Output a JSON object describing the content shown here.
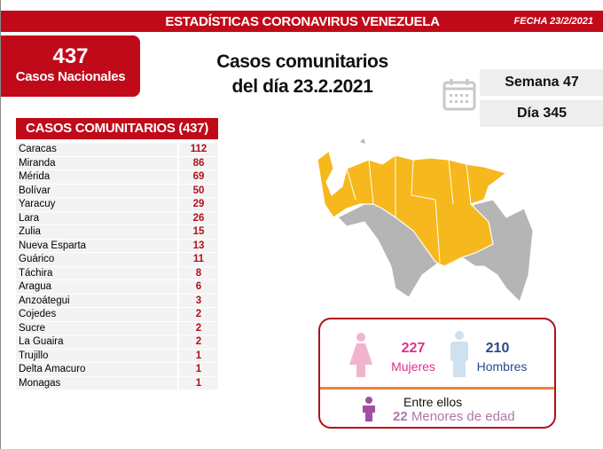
{
  "header": {
    "title": "ESTADÍSTICAS CORONAVIRUS VENEZUELA",
    "date": "FECHA 23/2/2021"
  },
  "national": {
    "count": "437",
    "label": "Casos Nacionales"
  },
  "main_title": {
    "line1": "Casos comunitarios",
    "line2": "del día 23.2.2021"
  },
  "week": "Semana 47",
  "day": "Día 345",
  "table": {
    "header": "CASOS COMUNITARIOS (437)",
    "rows": [
      {
        "state": "Caracas",
        "cases": "112"
      },
      {
        "state": "Miranda",
        "cases": "86"
      },
      {
        "state": "Mérida",
        "cases": "69"
      },
      {
        "state": "Bolívar",
        "cases": "50"
      },
      {
        "state": "Yaracuy",
        "cases": "29"
      },
      {
        "state": "Lara",
        "cases": "26"
      },
      {
        "state": "Zulia",
        "cases": "15"
      },
      {
        "state": "Nueva Esparta",
        "cases": "13"
      },
      {
        "state": "Guárico",
        "cases": "11"
      },
      {
        "state": "Táchira",
        "cases": "8"
      },
      {
        "state": "Aragua",
        "cases": "6"
      },
      {
        "state": "Anzoátegui",
        "cases": "3"
      },
      {
        "state": "Cojedes",
        "cases": "2"
      },
      {
        "state": "Sucre",
        "cases": "2"
      },
      {
        "state": "La Guaira",
        "cases": "2"
      },
      {
        "state": "Trujillo",
        "cases": "1"
      },
      {
        "state": "Delta Amacuro",
        "cases": "1"
      },
      {
        "state": "Monagas",
        "cases": "1"
      }
    ]
  },
  "demographics": {
    "women_count": "227",
    "women_label": "Mujeres",
    "men_count": "210",
    "men_label": "Hombres",
    "among": "Entre ellos",
    "minors_count": "22",
    "minors_label": "Menores de edad"
  },
  "colors": {
    "red": "#c00a1a",
    "map_affected": "#f6b81c",
    "map_other": "#b5b5b5",
    "women": "#e0308a",
    "men": "#2b4a8a",
    "minors": "#a050a0"
  }
}
